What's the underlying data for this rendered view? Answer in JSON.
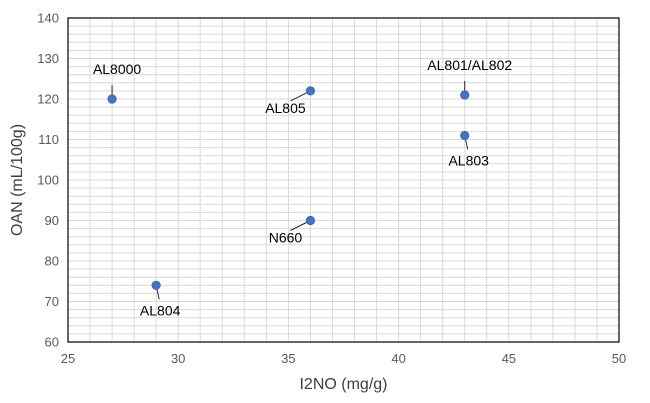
{
  "chart_data": {
    "type": "scatter",
    "title": "",
    "xlabel": "I2NO (mg/g)",
    "ylabel": "OAN (mL/100g)",
    "xlim": [
      25,
      50
    ],
    "ylim": [
      60,
      140
    ],
    "x_ticks": [
      25,
      30,
      35,
      40,
      45,
      50
    ],
    "y_ticks": [
      60,
      70,
      80,
      90,
      100,
      110,
      120,
      130,
      140
    ],
    "grid": true,
    "legend": "none",
    "marker_color": "#4472c4",
    "points": [
      {
        "label": "AL8000",
        "x": 27,
        "y": 120,
        "label_pos": "above"
      },
      {
        "label": "AL805",
        "x": 36,
        "y": 122,
        "label_pos": "below-left"
      },
      {
        "label": "AL801/AL802",
        "x": 43,
        "y": 121,
        "label_pos": "above"
      },
      {
        "label": "AL803",
        "x": 43,
        "y": 111,
        "label_pos": "below"
      },
      {
        "label": "N660",
        "x": 36,
        "y": 90,
        "label_pos": "below-left"
      },
      {
        "label": "AL804",
        "x": 29,
        "y": 74,
        "label_pos": "below"
      }
    ]
  }
}
